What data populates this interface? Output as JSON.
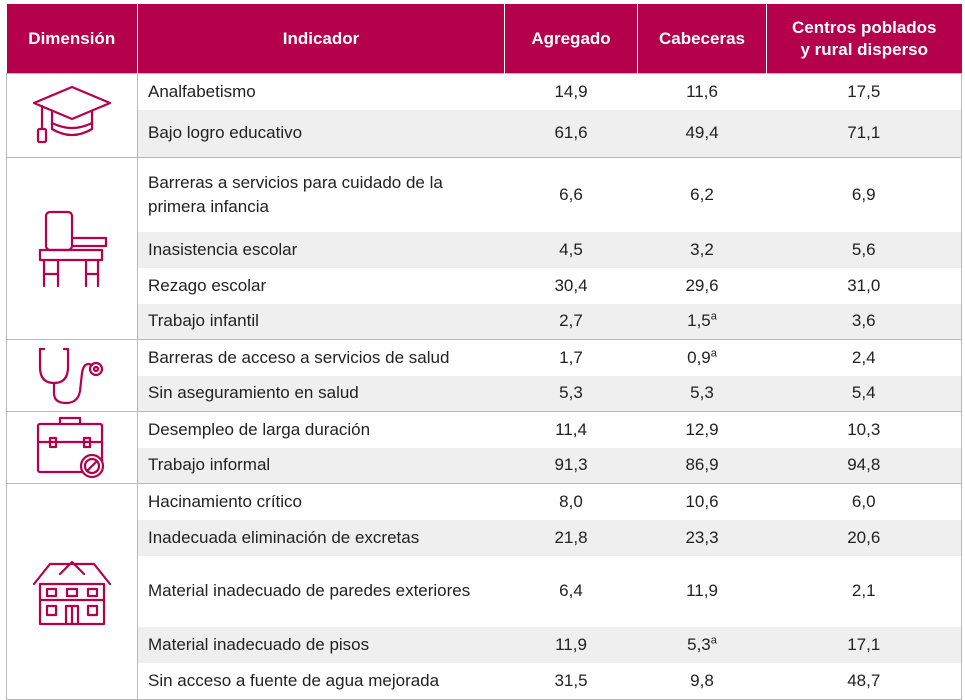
{
  "header": {
    "dimension": "Dimensión",
    "indicator": "Indicador",
    "aggregate": "Agregado",
    "heads": "Cabeceras",
    "rural_line1": "Centros poblados",
    "rural_line2": "y rural disperso"
  },
  "colors": {
    "accent": "#b5004b",
    "zebra": "#efefef"
  },
  "rows": [
    {
      "indicator": "Analfabetismo",
      "agg": "14,9",
      "cab": "11,6",
      "cab_note": "",
      "cen": "17,5"
    },
    {
      "indicator": "Bajo logro educativo",
      "agg": "61,6",
      "cab": "49,4",
      "cab_note": "",
      "cen": "71,1"
    },
    {
      "indicator": "Barreras a servicios para cuidado de la primera infancia",
      "agg": "6,6",
      "cab": "6,2",
      "cab_note": "",
      "cen": "6,9"
    },
    {
      "indicator": "Inasistencia escolar",
      "agg": "4,5",
      "cab": "3,2",
      "cab_note": "",
      "cen": "5,6"
    },
    {
      "indicator": "Rezago escolar",
      "agg": "30,4",
      "cab": "29,6",
      "cab_note": "",
      "cen": "31,0"
    },
    {
      "indicator": "Trabajo infantil",
      "agg": "2,7",
      "cab": "1,5",
      "cab_note": "a",
      "cen": "3,6"
    },
    {
      "indicator": "Barreras de acceso a servicios de salud",
      "agg": "1,7",
      "cab": "0,9",
      "cab_note": "a",
      "cen": "2,4"
    },
    {
      "indicator": "Sin aseguramiento en salud",
      "agg": "5,3",
      "cab": "5,3",
      "cab_note": "",
      "cen": "5,4"
    },
    {
      "indicator": "Desempleo de larga duración",
      "agg": "11,4",
      "cab": "12,9",
      "cab_note": "",
      "cen": "10,3"
    },
    {
      "indicator": "Trabajo informal",
      "agg": "91,3",
      "cab": "86,9",
      "cab_note": "",
      "cen": "94,8"
    },
    {
      "indicator": "Hacinamiento crítico",
      "agg": "8,0",
      "cab": "10,6",
      "cab_note": "",
      "cen": "6,0"
    },
    {
      "indicator": "Inadecuada eliminación de excretas",
      "agg": "21,8",
      "cab": "23,3",
      "cab_note": "",
      "cen": "20,6"
    },
    {
      "indicator": "Material inadecuado de paredes exteriores",
      "agg": "6,4",
      "cab": "11,9",
      "cab_note": "",
      "cen": "2,1"
    },
    {
      "indicator": "Material inadecuado de pisos",
      "agg": "11,9",
      "cab": "5,3",
      "cab_note": "a",
      "cen": "17,1"
    },
    {
      "indicator": "Sin acceso a fuente de agua mejorada",
      "agg": "31,5",
      "cab": "9,8",
      "cab_note": "",
      "cen": "48,7"
    }
  ],
  "dimensions": [
    {
      "icon": "graduation-cap-icon"
    },
    {
      "icon": "school-desk-icon"
    },
    {
      "icon": "stethoscope-icon"
    },
    {
      "icon": "briefcase-icon"
    },
    {
      "icon": "house-icon"
    }
  ]
}
